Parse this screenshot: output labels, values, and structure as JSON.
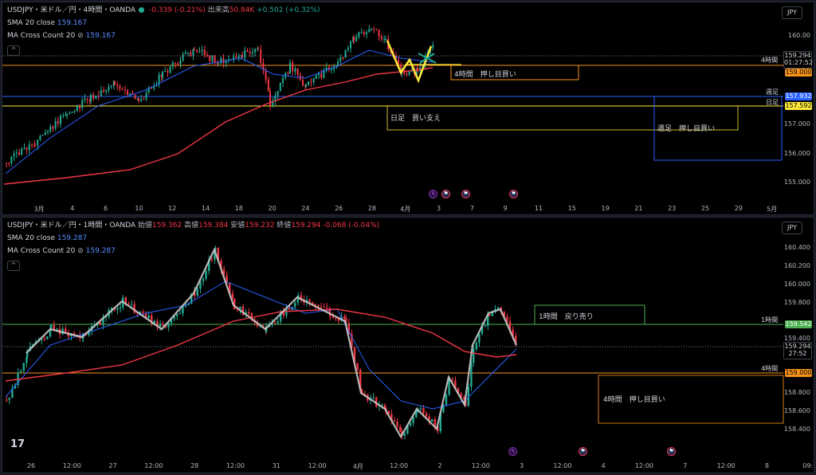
{
  "top": {
    "symbol": "USDJPY・米ドル／円・4時間・OANDA",
    "change": "-0.339 (-0.21%)",
    "volume_label": "出来高",
    "volume_value": "50.84K",
    "volume_change": "+0.502 (+0.32%)",
    "sma_label": "SMA 20 close",
    "sma_value": "159.167",
    "ma_label": "MA Cross Count 20",
    "ma_value": "159.167",
    "currency": "JPY",
    "y_ticks": [
      "160.00",
      "157.000",
      "156.000",
      "155.000"
    ],
    "x_ticks": [
      "3月",
      "4",
      "6",
      "10",
      "12",
      "14",
      "18",
      "20",
      "24",
      "26",
      "28",
      "4月",
      "3",
      "7",
      "9",
      "11",
      "15",
      "19",
      "21",
      "23",
      "25",
      "29",
      "5月"
    ],
    "tags": {
      "price": "159.294",
      "countdown": "01:27:52",
      "h4": "159.000",
      "weekly": "157.932",
      "daily": "157.592"
    },
    "line_labels": {
      "h4": "4時間",
      "weekly": "週足",
      "daily": "日足"
    },
    "zones": {
      "h4": "4時間　押し目買い",
      "daily": "日足　買い支え",
      "weekly": "週足　押し目買い"
    }
  },
  "bottom": {
    "symbol": "USDJPY・米ドル／円・1時間・OANDA",
    "ohlc": {
      "o_label": "始値",
      "o": "159.362",
      "h_label": "高値",
      "h": "159.384",
      "l_label": "安値",
      "l": "159.232",
      "c_label": "終値",
      "c": "159.294",
      "chg": "-0.068 (-0.04%)"
    },
    "sma_label": "SMA 20 close",
    "sma_value": "159.287",
    "ma_label": "MA Cross Count 20",
    "ma_value": "159.287",
    "currency": "JPY",
    "y_ticks": [
      "160.400",
      "160.200",
      "160.000",
      "159.800",
      "159.400",
      "158.800",
      "158.600",
      "158.400"
    ],
    "x_ticks": [
      "26",
      "12:00",
      "27",
      "12:00",
      "28",
      "12:00",
      "31",
      "12:00",
      "4月",
      "12:00",
      "2",
      "12:00",
      "3",
      "12:00",
      "4",
      "12:00",
      "7",
      "12:00",
      "8",
      "09:"
    ],
    "tags": {
      "price": "159.294",
      "countdown": "27:52",
      "h1": "159.542",
      "h4": "159.000"
    },
    "line_labels": {
      "h1": "1時間",
      "h4": "4時間"
    },
    "zones": {
      "h1": "1時間　戻り売り",
      "h4": "4時間　押し目買い"
    }
  },
  "colors": {
    "bull": "#22ab94",
    "bear": "#f23645",
    "sma": "#2962ff",
    "ma200": "#f23645",
    "h4_line": "#f7931a",
    "daily_line": "#ffeb3b",
    "weekly_line": "#2962ff",
    "h1_line": "#4caf50"
  }
}
